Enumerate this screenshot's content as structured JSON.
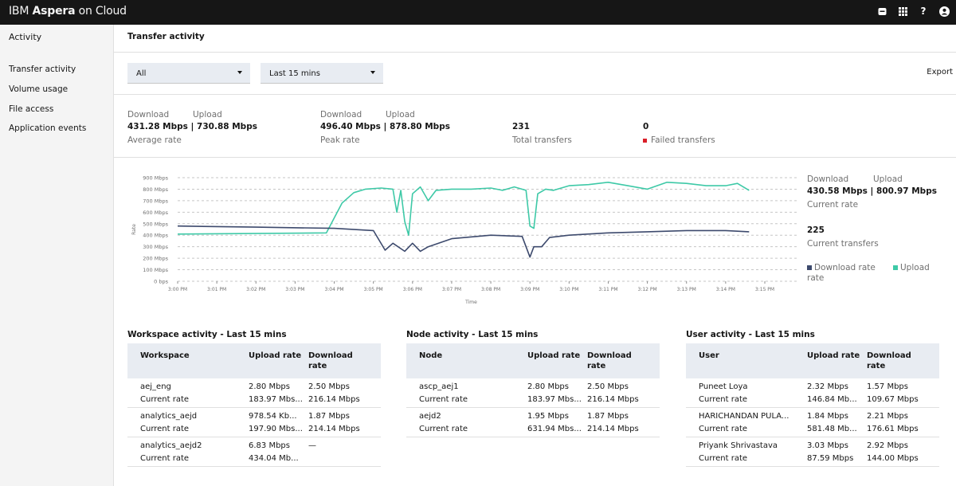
{
  "header": {
    "brand_prefix": "IBM",
    "brand_bold": "Aspera",
    "brand_suffix": "on Cloud"
  },
  "sidebar": {
    "heading": "Activity",
    "items": [
      {
        "label": "Transfer activity"
      },
      {
        "label": "Volume usage"
      },
      {
        "label": "File access"
      },
      {
        "label": "Application events"
      }
    ]
  },
  "page": {
    "title": "Transfer activity",
    "export_label": "Export"
  },
  "filters": {
    "scope": "All",
    "range": "Last 15 mins"
  },
  "summary": {
    "download_label": "Download",
    "upload_label": "Upload",
    "average": {
      "value": "431.28 Mbps | 730.88 Mbps",
      "label": "Average rate"
    },
    "peak": {
      "value": "496.40 Mbps | 878.80 Mbps",
      "label": "Peak rate"
    },
    "total": {
      "value": "231",
      "label": "Total transfers"
    },
    "failed": {
      "value": "0",
      "label": "Failed transfers"
    }
  },
  "right_panel": {
    "download_label": "Download",
    "upload_label": "Upload",
    "current_value": "430.58 Mbps | 800.97 Mbps",
    "current_label": "Current rate",
    "transfers_value": "225",
    "transfers_label": "Current transfers",
    "legend_download_1": "Download rate",
    "legend_download_2": "rate",
    "legend_upload": "Upload"
  },
  "colors": {
    "download": "#3d4a6d",
    "upload": "#3ec9a7",
    "failed": "#da1e28"
  },
  "chart_data": {
    "type": "line",
    "ylabel": "Rate",
    "xlabel": "Time",
    "y_ticks": [
      "0 bps",
      "100 Mbps",
      "200 Mbps",
      "300 Mbps",
      "400 Mbps",
      "500 Mbps",
      "600 Mbps",
      "700 Mbps",
      "800 Mbps",
      "900 Mbps"
    ],
    "ylim": [
      0,
      900
    ],
    "x_ticks": [
      "3:00 PM",
      "3:01 PM",
      "3:02 PM",
      "3:03 PM",
      "3:04 PM",
      "3:05 PM",
      "3:06 PM",
      "3:07 PM",
      "3:08 PM",
      "3:09 PM",
      "3:10 PM",
      "3:11 PM",
      "3:12 PM",
      "3:13 PM",
      "3:14 PM",
      "3:15 PM"
    ],
    "xlim": [
      0,
      15
    ],
    "grid": true,
    "series": [
      {
        "name": "Upload",
        "x": [
          0,
          3.8,
          4.2,
          4.5,
          4.8,
          5.2,
          5.5,
          5.6,
          5.7,
          5.8,
          5.9,
          6.0,
          6.2,
          6.4,
          6.6,
          7.0,
          7.5,
          8.0,
          8.3,
          8.6,
          8.9,
          9.0,
          9.1,
          9.2,
          9.4,
          9.6,
          10.0,
          10.5,
          11.0,
          11.5,
          12.0,
          12.5,
          13.0,
          13.5,
          14.0,
          14.3,
          14.6
        ],
        "y": [
          410,
          420,
          680,
          770,
          800,
          810,
          800,
          600,
          790,
          520,
          400,
          760,
          820,
          700,
          790,
          800,
          800,
          810,
          790,
          820,
          790,
          480,
          460,
          760,
          800,
          790,
          830,
          840,
          860,
          830,
          800,
          860,
          850,
          830,
          830,
          850,
          790
        ]
      },
      {
        "name": "Download rate",
        "x": [
          0,
          2,
          4,
          5.0,
          5.3,
          5.5,
          5.8,
          6.0,
          6.2,
          6.4,
          7.0,
          8.0,
          8.8,
          9.0,
          9.1,
          9.3,
          9.5,
          10.0,
          11.0,
          12.0,
          13.0,
          14.0,
          14.6
        ],
        "y": [
          480,
          470,
          460,
          440,
          270,
          330,
          260,
          330,
          260,
          300,
          370,
          400,
          390,
          210,
          300,
          300,
          380,
          400,
          420,
          430,
          440,
          440,
          430
        ]
      }
    ]
  },
  "workspace_activity": {
    "title": "Workspace activity - Last 15 mins",
    "headers": {
      "name": "Workspace",
      "upload": "Upload rate",
      "download_1": "Download",
      "download_2": "rate"
    },
    "rows": [
      {
        "name": "aej_eng",
        "sub": "Current rate",
        "upload": "2.80 Mbps",
        "upload_sub": "183.97 Mbs...",
        "download": "2.50 Mbps",
        "download_sub": "216.14 Mbps"
      },
      {
        "name": "analytics_aejd",
        "sub": "Current rate",
        "upload": "978.54 Kb...",
        "upload_sub": "197.90 Mbs...",
        "download": "1.87 Mbps",
        "download_sub": "214.14 Mbps"
      },
      {
        "name": "analytics_aejd2",
        "sub": "Current rate",
        "upload": "6.83 Mbps",
        "upload_sub": "434.04 Mb...",
        "download": "—",
        "download_sub": ""
      }
    ]
  },
  "node_activity": {
    "title": "Node activity - Last 15 mins",
    "headers": {
      "name": "Node",
      "upload": "Upload rate",
      "download_1": "Download",
      "download_2": "rate"
    },
    "rows": [
      {
        "name": "ascp_aej1",
        "sub": "Current rate",
        "upload": "2.80 Mbps",
        "upload_sub": "183.97 Mbs...",
        "download": "2.50 Mbps",
        "download_sub": "216.14 Mbps"
      },
      {
        "name": "aejd2",
        "sub": "Current rate",
        "upload": "1.95 Mbps",
        "upload_sub": "631.94 Mbs...",
        "download": "1.87 Mbps",
        "download_sub": "214.14 Mbps"
      }
    ]
  },
  "user_activity": {
    "title": "User activity - Last 15 mins",
    "headers": {
      "name": "User",
      "upload": "Upload rate",
      "download_1": "Download",
      "download_2": "rate"
    },
    "rows": [
      {
        "name": "Puneet Loya",
        "sub": "Current rate",
        "upload": "2.32 Mbps",
        "upload_sub": "146.84 Mb...",
        "download": "1.57 Mbps",
        "download_sub": "109.67 Mbps"
      },
      {
        "name": "HARICHANDAN PULA...",
        "sub": "Current rate",
        "upload": "1.84 Mbps",
        "upload_sub": "581.48 Mb...",
        "download": "2.21 Mbps",
        "download_sub": "176.61 Mbps"
      },
      {
        "name": "Priyank Shrivastava",
        "sub": "Current rate",
        "upload": "3.03 Mbps",
        "upload_sub": "87.59 Mbps",
        "download": "2.92 Mbps",
        "download_sub": "144.00 Mbps"
      }
    ]
  }
}
